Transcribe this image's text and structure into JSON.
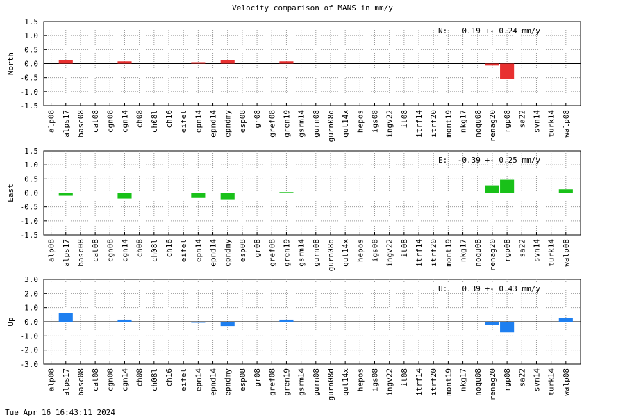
{
  "title": "Velocity comparison of MANS in mm/y",
  "timestamp": "Tue Apr 16 16:43:11 2024",
  "chart_data": [
    {
      "type": "bar",
      "ylabel": "North",
      "ylim": [
        -1.5,
        1.5
      ],
      "yticks": [
        "1.5",
        "1.0",
        "0.5",
        "0.0",
        "-0.5",
        "-1.0",
        "-1.5"
      ],
      "color": "#e83030",
      "grid": true,
      "stat_label": "N:",
      "stat_text": "0.19 +-  0.24 mm/y",
      "categories": [
        "alp08",
        "alps17",
        "basc08",
        "cat08",
        "cgn08",
        "cgn14",
        "ch08",
        "ch08l",
        "ch16",
        "eifel",
        "epn14",
        "epnd14",
        "epndmy",
        "esp08",
        "gr08",
        "gref08",
        "gren19",
        "gsrm14",
        "gurn08",
        "gurn08d",
        "gut14x",
        "hepos",
        "igs08",
        "ingv22",
        "it08",
        "itrf14",
        "itrf20",
        "mont19",
        "nkg17",
        "noqu08",
        "renag20",
        "rgp08",
        "sa22",
        "svn14",
        "turk14",
        "walp08"
      ],
      "values": [
        0,
        0.13,
        0,
        0,
        0,
        0.08,
        0,
        0,
        0,
        0,
        0.05,
        0,
        0.13,
        0,
        0,
        0,
        0.08,
        0,
        0,
        0,
        0,
        0,
        0,
        0,
        0,
        0,
        0,
        0,
        0,
        0,
        -0.07,
        -0.55,
        0,
        0,
        0,
        0
      ]
    },
    {
      "type": "bar",
      "ylabel": "East",
      "ylim": [
        -1.5,
        1.5
      ],
      "yticks": [
        "1.5",
        "1.0",
        "0.5",
        "0.0",
        "-0.5",
        "-1.0",
        "-1.5"
      ],
      "color": "#19c119",
      "grid": true,
      "stat_label": "E:",
      "stat_text": "-0.39 +-  0.25 mm/y",
      "categories": [
        "alp08",
        "alps17",
        "basc08",
        "cat08",
        "cgn08",
        "cgn14",
        "ch08",
        "ch08l",
        "ch16",
        "eifel",
        "epn14",
        "epnd14",
        "epndmy",
        "esp08",
        "gr08",
        "gref08",
        "gren19",
        "gsrm14",
        "gurn08",
        "gurn08d",
        "gut14x",
        "hepos",
        "igs08",
        "ingv22",
        "it08",
        "itrf14",
        "itrf20",
        "mont19",
        "nkg17",
        "noqu08",
        "renag20",
        "rgp08",
        "sa22",
        "svn14",
        "turk14",
        "walp08"
      ],
      "values": [
        0,
        -0.1,
        0,
        0,
        0,
        -0.2,
        0,
        0,
        0,
        0,
        -0.18,
        0,
        -0.25,
        0,
        0,
        0,
        0.03,
        0,
        0,
        0,
        0,
        0,
        0,
        0,
        0,
        0,
        0,
        0,
        0,
        0,
        0.27,
        0.47,
        0,
        0,
        0,
        0.13
      ]
    },
    {
      "type": "bar",
      "ylabel": "Up",
      "ylim": [
        -3.0,
        3.0
      ],
      "yticks": [
        "3.0",
        "2.0",
        "1.0",
        "0.0",
        "-1.0",
        "-2.0",
        "-3.0"
      ],
      "color": "#1e7ff0",
      "grid": true,
      "stat_label": "U:",
      "stat_text": "0.39 +-  0.43 mm/y",
      "categories": [
        "alp08",
        "alps17",
        "basc08",
        "cat08",
        "cgn08",
        "cgn14",
        "ch08",
        "ch08l",
        "ch16",
        "eifel",
        "epn14",
        "epnd14",
        "epndmy",
        "esp08",
        "gr08",
        "gref08",
        "gren19",
        "gsrm14",
        "gurn08",
        "gurn08d",
        "gut14x",
        "hepos",
        "igs08",
        "ingv22",
        "it08",
        "itrf14",
        "itrf20",
        "mont19",
        "nkg17",
        "noqu08",
        "renag20",
        "rgp08",
        "sa22",
        "svn14",
        "turk14",
        "walp08"
      ],
      "values": [
        0,
        0.6,
        0,
        0,
        0,
        0.15,
        0,
        0,
        0,
        0,
        -0.07,
        0,
        -0.3,
        0,
        0,
        0,
        0.15,
        0,
        0,
        0,
        0,
        0,
        0,
        0,
        0,
        0,
        0,
        0,
        0,
        0,
        -0.22,
        -0.75,
        0,
        0,
        0,
        0.25
      ]
    }
  ]
}
